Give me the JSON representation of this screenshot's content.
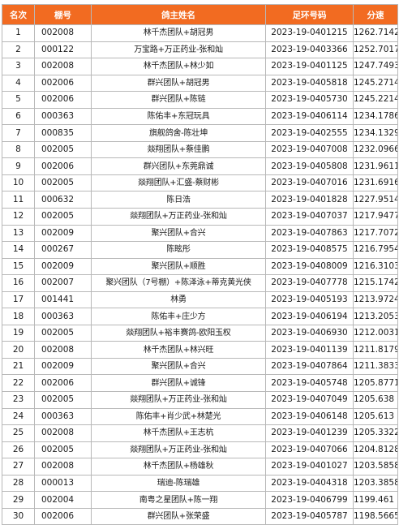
{
  "headers": {
    "rank": "名次",
    "loft": "棚号",
    "name": "鸽主姓名",
    "ring": "足环号码",
    "speed": "分速"
  },
  "rows": [
    {
      "rank": "1",
      "loft": "002008",
      "name": "林千杰团队+胡冠男",
      "ring": "2023-19-0401215",
      "speed": "1262.7142"
    },
    {
      "rank": "2",
      "loft": "000122",
      "name": "万宝路+万正药业-张和灿",
      "ring": "2023-19-0403366",
      "speed": "1252.7017"
    },
    {
      "rank": "3",
      "loft": "002008",
      "name": "林千杰团队+林少如",
      "ring": "2023-19-0401125",
      "speed": "1247.7493"
    },
    {
      "rank": "4",
      "loft": "002006",
      "name": "群兴团队+胡冠男",
      "ring": "2023-19-0405818",
      "speed": "1245.2714"
    },
    {
      "rank": "5",
      "loft": "002006",
      "name": "群兴团队+陈链",
      "ring": "2023-19-0405730",
      "speed": "1245.2214"
    },
    {
      "rank": "6",
      "loft": "000363",
      "name": "陈佑丰+东冠玩具",
      "ring": "2023-19-0406114",
      "speed": "1234.1786"
    },
    {
      "rank": "7",
      "loft": "000835",
      "name": "旗舰鸽舍-陈壮坤",
      "ring": "2023-19-0402555",
      "speed": "1234.1329"
    },
    {
      "rank": "8",
      "loft": "002005",
      "name": "燚翔团队+蔡佳鹏",
      "ring": "2023-19-0407008",
      "speed": "1232.0966"
    },
    {
      "rank": "9",
      "loft": "002006",
      "name": "群兴团队+东莞鼎诚",
      "ring": "2023-19-0405808",
      "speed": "1231.9611"
    },
    {
      "rank": "10",
      "loft": "002005",
      "name": "燚翔团队+汇盛-蔡财彬",
      "ring": "2023-19-0407016",
      "speed": "1231.6916"
    },
    {
      "rank": "11",
      "loft": "000632",
      "name": "陈日浩",
      "ring": "2023-19-0401828",
      "speed": "1227.9514"
    },
    {
      "rank": "12",
      "loft": "002005",
      "name": "燚翔团队+万正药业-张和灿",
      "ring": "2023-19-0407037",
      "speed": "1217.9477"
    },
    {
      "rank": "13",
      "loft": "002009",
      "name": "聚兴团队+合兴",
      "ring": "2023-19-0407863",
      "speed": "1217.7072"
    },
    {
      "rank": "14",
      "loft": "000267",
      "name": "陈眩彤",
      "ring": "2023-19-0408575",
      "speed": "1216.7954"
    },
    {
      "rank": "15",
      "loft": "002009",
      "name": "聚兴团队+顺胜",
      "ring": "2023-19-0408009",
      "speed": "1216.3103"
    },
    {
      "rank": "16",
      "loft": "002007",
      "name": "聚兴团队（7号棚）+陈泽泳+蒂克黄光侠",
      "ring": "2023-19-0407778",
      "speed": "1215.1742"
    },
    {
      "rank": "17",
      "loft": "001441",
      "name": "林勇",
      "ring": "2023-19-0405193",
      "speed": "1213.9724"
    },
    {
      "rank": "18",
      "loft": "000363",
      "name": "陈佑丰+庄少方",
      "ring": "2023-19-0406194",
      "speed": "1213.2053"
    },
    {
      "rank": "19",
      "loft": "002005",
      "name": "燚翔团队+裕丰赛鸽-欧阳玉权",
      "ring": "2023-19-0406930",
      "speed": "1212.0031"
    },
    {
      "rank": "20",
      "loft": "002008",
      "name": "林千杰团队+林兴旺",
      "ring": "2023-19-0401139",
      "speed": "1211.8179"
    },
    {
      "rank": "21",
      "loft": "002009",
      "name": "聚兴团队+合兴",
      "ring": "2023-19-0407864",
      "speed": "1211.3833"
    },
    {
      "rank": "22",
      "loft": "002006",
      "name": "群兴团队+诚锋",
      "ring": "2023-19-0405748",
      "speed": "1205.8771"
    },
    {
      "rank": "23",
      "loft": "002005",
      "name": "燚翔团队+万正药业-张和灿",
      "ring": "2023-19-0407049",
      "speed": "1205.638"
    },
    {
      "rank": "24",
      "loft": "000363",
      "name": "陈佑丰+肖少武+林楚光",
      "ring": "2023-19-0406148",
      "speed": "1205.613"
    },
    {
      "rank": "25",
      "loft": "002008",
      "name": "林千杰团队+王志杭",
      "ring": "2023-19-0401239",
      "speed": "1205.3322"
    },
    {
      "rank": "26",
      "loft": "002005",
      "name": "燚翔团队+万正药业-张和灿",
      "ring": "2023-19-0407066",
      "speed": "1204.8128"
    },
    {
      "rank": "27",
      "loft": "002008",
      "name": "林千杰团队+杨雄秋",
      "ring": "2023-19-0401027",
      "speed": "1203.5858"
    },
    {
      "rank": "28",
      "loft": "000013",
      "name": "瑞迪-陈瑞雄",
      "ring": "2023-19-0404318",
      "speed": "1203.3858"
    },
    {
      "rank": "29",
      "loft": "002004",
      "name": "南粤之星团队+陈一翔",
      "ring": "2023-19-0406799",
      "speed": "1199.461"
    },
    {
      "rank": "30",
      "loft": "002006",
      "name": "群兴团队+张荣盛",
      "ring": "2023-19-0405787",
      "speed": "1198.5665"
    }
  ],
  "colors": {
    "header_bg": "#f26b21",
    "header_text": "#ffffff",
    "grid": "#b8b8b8"
  }
}
